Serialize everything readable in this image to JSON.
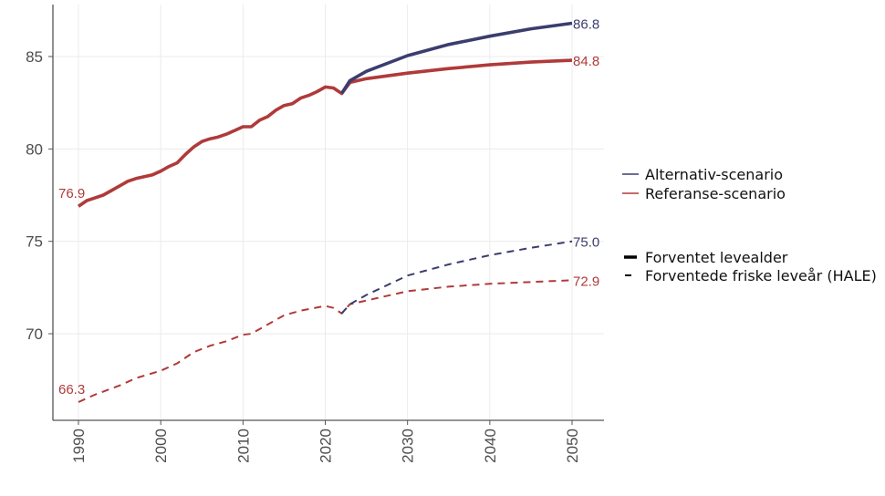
{
  "chart_data": {
    "type": "line",
    "xlim": [
      1987,
      2054
    ],
    "ylim": [
      65.3,
      87.8
    ],
    "grid": true,
    "legend_placement": "right",
    "x_ticks": [
      1990,
      2000,
      2010,
      2020,
      2030,
      2040,
      2050
    ],
    "x_tick_labels": [
      "1990",
      "2000",
      "2010",
      "2020",
      "2030",
      "2040",
      "2050"
    ],
    "y_ticks": [
      70,
      75,
      80,
      85
    ],
    "y_tick_labels": [
      "70",
      "75",
      "80",
      "85"
    ],
    "colors": {
      "alternative": "#3b3d6e",
      "reference": "#b03a3a"
    },
    "legend": {
      "scenarios": [
        {
          "label": "Alternativ-scenario",
          "color": "#3b3d6e"
        },
        {
          "label": "Referanse-scenario",
          "color": "#b03a3a"
        }
      ],
      "measures": [
        {
          "label": "Forventet levealder",
          "style": "solid"
        },
        {
          "label": "Forventede friske leveår (HALE)",
          "style": "dashed"
        }
      ]
    },
    "series": [
      {
        "scenario": "Referanse-scenario",
        "measure": "Forventet levealder",
        "style": "solid",
        "color": "#b03a3a",
        "x": [
          1990,
          1991,
          1992,
          1993,
          1994,
          1995,
          1996,
          1997,
          1998,
          1999,
          2000,
          2001,
          2002,
          2003,
          2004,
          2005,
          2006,
          2007,
          2008,
          2009,
          2010,
          2011,
          2012,
          2013,
          2014,
          2015,
          2016,
          2017,
          2018,
          2019,
          2020,
          2021,
          2022,
          2023,
          2025,
          2030,
          2035,
          2040,
          2045,
          2050
        ],
        "y": [
          76.9,
          77.2,
          77.35,
          77.5,
          77.75,
          78.0,
          78.25,
          78.4,
          78.5,
          78.6,
          78.8,
          79.05,
          79.25,
          79.7,
          80.1,
          80.4,
          80.55,
          80.65,
          80.8,
          81.0,
          81.2,
          81.2,
          81.55,
          81.75,
          82.1,
          82.35,
          82.45,
          82.75,
          82.9,
          83.1,
          83.35,
          83.3,
          83.0,
          83.6,
          83.8,
          84.1,
          84.35,
          84.55,
          84.7,
          84.8
        ]
      },
      {
        "scenario": "Alternativ-scenario",
        "measure": "Forventet levealder",
        "style": "solid",
        "color": "#3b3d6e",
        "x": [
          2022,
          2023,
          2025,
          2030,
          2035,
          2040,
          2045,
          2050
        ],
        "y": [
          83.0,
          83.7,
          84.2,
          85.05,
          85.65,
          86.1,
          86.5,
          86.8
        ]
      },
      {
        "scenario": "Referanse-scenario",
        "measure": "Forventede friske leveår (HALE)",
        "style": "dashed",
        "color": "#b03a3a",
        "x": [
          1990,
          1992,
          1995,
          1997,
          2000,
          2002,
          2004,
          2006,
          2008,
          2010,
          2011,
          2013,
          2015,
          2017,
          2020,
          2021,
          2022,
          2023,
          2025,
          2030,
          2035,
          2040,
          2045,
          2050
        ],
        "y": [
          66.3,
          66.7,
          67.2,
          67.6,
          68.0,
          68.4,
          69.0,
          69.35,
          69.6,
          69.95,
          70.0,
          70.5,
          71.0,
          71.25,
          71.5,
          71.4,
          71.1,
          71.6,
          71.8,
          72.3,
          72.55,
          72.7,
          72.8,
          72.9
        ]
      },
      {
        "scenario": "Alternativ-scenario",
        "measure": "Forventede friske leveår (HALE)",
        "style": "dashed",
        "color": "#3b3d6e",
        "x": [
          2022,
          2023,
          2025,
          2030,
          2035,
          2040,
          2045,
          2050
        ],
        "y": [
          71.1,
          71.6,
          72.1,
          73.15,
          73.75,
          74.25,
          74.65,
          75.0
        ]
      }
    ],
    "data_labels": [
      {
        "text": "76.9",
        "x": 1990,
        "y": 76.9,
        "side": "left",
        "color": "#b03a3a"
      },
      {
        "text": "66.3",
        "x": 1990,
        "y": 66.3,
        "side": "left",
        "color": "#b03a3a"
      },
      {
        "text": "86.8",
        "x": 2050,
        "y": 86.8,
        "side": "right",
        "color": "#3b3d6e"
      },
      {
        "text": "84.8",
        "x": 2050,
        "y": 84.8,
        "side": "right",
        "color": "#b03a3a"
      },
      {
        "text": "75.0",
        "x": 2050,
        "y": 75.0,
        "side": "right",
        "color": "#3b3d6e"
      },
      {
        "text": "72.9",
        "x": 2050,
        "y": 72.9,
        "side": "right",
        "color": "#b03a3a"
      }
    ]
  }
}
